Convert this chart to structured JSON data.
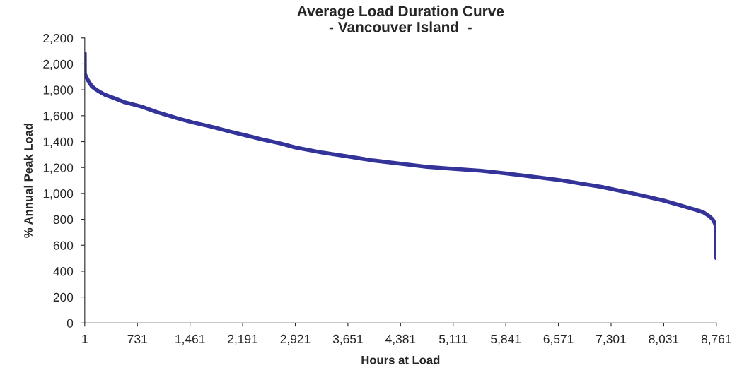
{
  "chart_data": {
    "type": "line",
    "title": "Average Load Duration Curve\n- Vancouver Island  -",
    "xlabel": "Hours at Load",
    "ylabel": "% Annual Peak Load",
    "x": [
      1,
      2,
      20,
      50,
      99,
      150,
      197,
      280,
      393,
      550,
      786,
      1000,
      1276,
      1500,
      1767,
      2000,
      2257,
      2500,
      2718,
      2921,
      3300,
      3651,
      4000,
      4381,
      4750,
      5111,
      5500,
      5841,
      6200,
      6571,
      6900,
      7162,
      7301,
      7600,
      7819,
      8031,
      8250,
      8466,
      8580,
      8662,
      8710,
      8740,
      8758,
      8761
    ],
    "series": [
      {
        "color": "#333399",
        "values": [
          2080,
          1925,
          1900,
          1870,
          1827,
          1805,
          1788,
          1762,
          1739,
          1705,
          1671,
          1628,
          1582,
          1548,
          1514,
          1480,
          1445,
          1412,
          1386,
          1355,
          1315,
          1285,
          1255,
          1230,
          1205,
          1190,
          1175,
          1155,
          1130,
          1105,
          1075,
          1051,
          1035,
          1000,
          972,
          945,
          910,
          875,
          855,
          825,
          800,
          770,
          735,
          500
        ]
      }
    ],
    "xlim": [
      1,
      8761
    ],
    "xticks": [
      1,
      {
        "value": 731,
        "label": "731"
      },
      {
        "value": 1461,
        "label": "1,461"
      },
      {
        "value": 2191,
        "label": "2,191"
      },
      {
        "value": 2921,
        "label": "2,921"
      },
      {
        "value": 3651,
        "label": "3,651"
      },
      {
        "value": 4381,
        "label": "4,381"
      },
      {
        "value": 5111,
        "label": "5,111"
      },
      {
        "value": 5841,
        "label": "5,841"
      },
      {
        "value": 6571,
        "label": "6,571"
      },
      {
        "value": 7301,
        "label": "7,301"
      },
      {
        "value": 8031,
        "label": "8,031"
      },
      {
        "value": 8761,
        "label": "8,761"
      }
    ],
    "ylim": [
      0,
      2200
    ],
    "yticks": [
      0,
      200,
      400,
      600,
      800,
      {
        "value": 1000,
        "label": "1,000"
      },
      {
        "value": 1200,
        "label": "1,200"
      },
      {
        "value": 1400,
        "label": "1,400"
      },
      {
        "value": 1600,
        "label": "1,600"
      },
      {
        "value": 1800,
        "label": "1,800"
      },
      {
        "value": 2000,
        "label": "2,000"
      },
      {
        "value": 2200,
        "label": "2,200"
      }
    ],
    "grid": false,
    "legend": false,
    "marker": "none",
    "line_style": "solid"
  }
}
